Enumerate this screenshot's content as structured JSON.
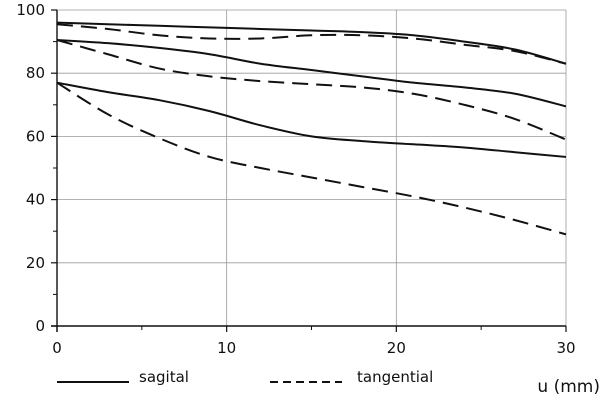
{
  "chart_data": {
    "type": "line",
    "title": "",
    "xlabel": "u (mm)",
    "ylabel": "",
    "xlim": [
      0,
      30
    ],
    "ylim": [
      0,
      100
    ],
    "x_ticks": [
      0,
      10,
      20,
      30
    ],
    "y_ticks": [
      0,
      20,
      40,
      60,
      80,
      100
    ],
    "grid": true,
    "legend_position": "bottom",
    "legend": [
      {
        "label": "sagital",
        "style": "solid"
      },
      {
        "label": "tangential",
        "style": "dashed"
      }
    ],
    "line_color": "#111111",
    "grid_color": "#9a9a9a",
    "series": [
      {
        "style": "solid",
        "x": [
          0,
          3,
          6,
          9,
          12,
          15,
          18,
          21,
          24,
          27,
          30
        ],
        "y": [
          96,
          95.5,
          95,
          94.5,
          94,
          93.5,
          93,
          92,
          90,
          87.5,
          83
        ]
      },
      {
        "style": "dashed",
        "x": [
          0,
          3,
          6,
          9,
          12,
          15,
          18,
          21,
          24,
          27,
          30
        ],
        "y": [
          95.5,
          94,
          92,
          91,
          91,
          92,
          92,
          91,
          89,
          87,
          83
        ]
      },
      {
        "style": "solid",
        "x": [
          0,
          3,
          6,
          9,
          12,
          15,
          18,
          21,
          24,
          27,
          30
        ],
        "y": [
          90.5,
          89.5,
          88,
          86,
          83,
          81,
          79,
          77,
          75.5,
          73.5,
          69.5
        ]
      },
      {
        "style": "dashed",
        "x": [
          0,
          3,
          6,
          9,
          12,
          15,
          18,
          21,
          24,
          27,
          30
        ],
        "y": [
          90.5,
          86,
          81.5,
          79,
          77.5,
          76.5,
          75.5,
          73.5,
          70,
          65.5,
          59
        ]
      },
      {
        "style": "solid",
        "x": [
          0,
          3,
          6,
          9,
          12,
          15,
          18,
          21,
          24,
          27,
          30
        ],
        "y": [
          77,
          74,
          71.5,
          68,
          63.5,
          60,
          58.5,
          57.5,
          56.5,
          55,
          53.5
        ]
      },
      {
        "style": "dashed",
        "x": [
          0,
          3,
          6,
          9,
          12,
          15,
          18,
          21,
          24,
          27,
          30
        ],
        "y": [
          77,
          67,
          59.5,
          53.5,
          50,
          47,
          44,
          41,
          37.5,
          33.5,
          29
        ]
      }
    ]
  }
}
